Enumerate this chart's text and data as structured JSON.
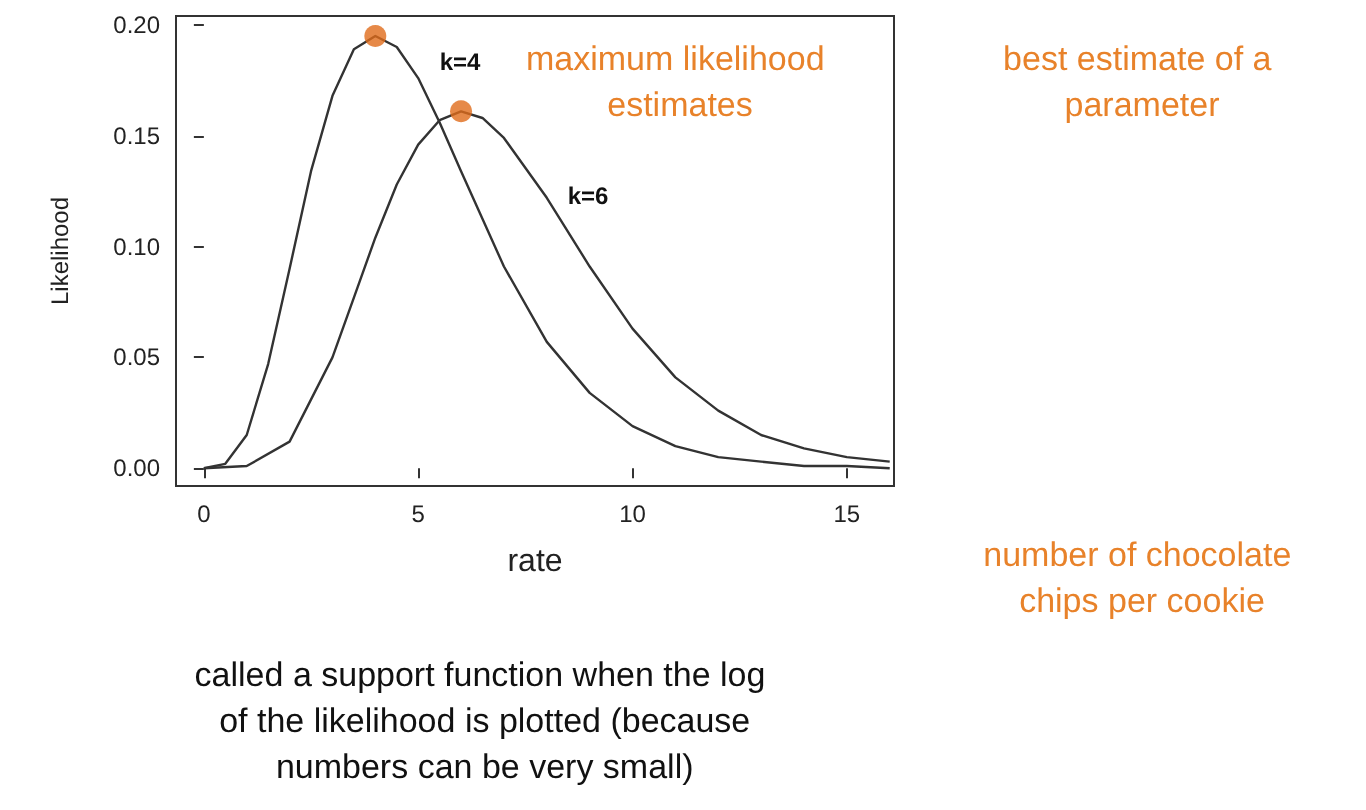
{
  "chart_data": {
    "type": "line",
    "xlabel": "rate",
    "ylabel": "Likelihood",
    "xlim": [
      -0.65,
      16.1
    ],
    "xticks": [
      0,
      5,
      10,
      15
    ],
    "ylim": [
      -0.008,
      0.204
    ],
    "yticks": [
      {
        "value": 0,
        "label": "0.00"
      },
      {
        "value": 0.05,
        "label": "0.05"
      },
      {
        "value": 0.1,
        "label": "0.10"
      },
      {
        "value": 0.15,
        "label": "0.15"
      },
      {
        "value": 0.2,
        "label": "0.20"
      }
    ],
    "grid": false,
    "marker": "none",
    "line_style": "solid",
    "series": [
      {
        "color": "#333333",
        "x": [
          0,
          0.5,
          1,
          1.5,
          2,
          2.5,
          3,
          3.5,
          4,
          4.5,
          5,
          5.5,
          6,
          7,
          8,
          9,
          10,
          11,
          12,
          13,
          14,
          15,
          16
        ],
        "values": [
          0,
          0.002,
          0.015,
          0.047,
          0.09,
          0.134,
          0.168,
          0.189,
          0.195,
          0.19,
          0.176,
          0.156,
          0.134,
          0.091,
          0.057,
          0.034,
          0.019,
          0.01,
          0.005,
          0.003,
          0.001,
          0.001,
          0.0
        ]
      },
      {
        "color": "#333333",
        "x": [
          0,
          1,
          2,
          3,
          3.5,
          4,
          4.5,
          5,
          5.5,
          6,
          6.5,
          7,
          8,
          9,
          10,
          11,
          12,
          13,
          14,
          15,
          16
        ],
        "values": [
          0,
          0.001,
          0.012,
          0.05,
          0.077,
          0.104,
          0.128,
          0.146,
          0.157,
          0.161,
          0.158,
          0.149,
          0.122,
          0.091,
          0.063,
          0.041,
          0.026,
          0.015,
          0.009,
          0.005,
          0.003
        ]
      },
      {
        "type": "scatter",
        "marker": "circle",
        "color": "#e06c1a",
        "x": [
          4,
          6
        ],
        "values": [
          0.195,
          0.161
        ]
      }
    ],
    "annotations": [
      "k=4",
      "k=6",
      "maximum likelihood estimates",
      "best estimate of a parameter",
      "number of chocolate chips per cookie",
      "called a support function when the log of the likelihood is plotted (because numbers can be very small)"
    ]
  }
}
